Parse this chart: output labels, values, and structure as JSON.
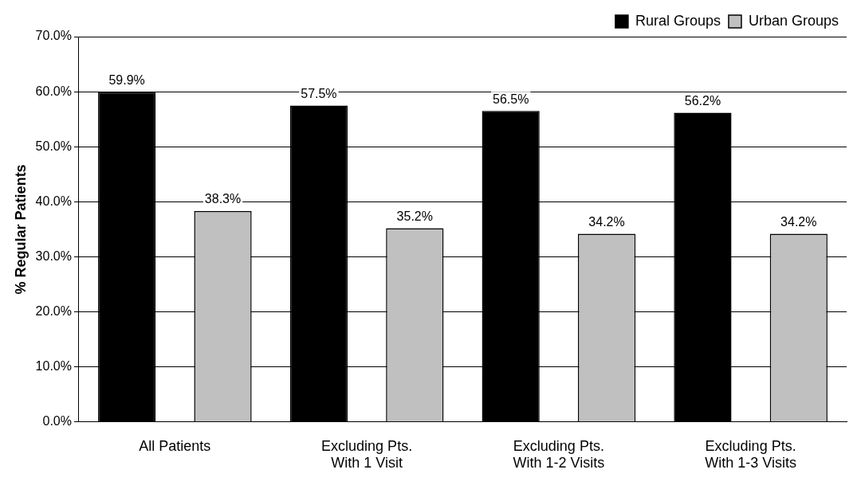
{
  "chart_data": {
    "type": "bar",
    "ylabel": "% Regular Patients",
    "categories": [
      "All Patients",
      "Excluding Pts.\nWith 1 Visit",
      "Excluding Pts.\nWith 1-2 Visits",
      "Excluding Pts.\nWith 1-3 Visits"
    ],
    "series": [
      {
        "name": "Rural Groups",
        "color": "#000000",
        "values": [
          59.9,
          57.5,
          56.5,
          56.2
        ],
        "value_labels": [
          "59.9%",
          "57.5%",
          "56.5%",
          "56.2%"
        ]
      },
      {
        "name": "Urban Groups",
        "color": "#c0c0c0",
        "values": [
          38.3,
          35.2,
          34.2,
          34.2
        ],
        "value_labels": [
          "38.3%",
          "35.2%",
          "34.2%",
          "34.2%"
        ]
      }
    ],
    "ylim": [
      0,
      70
    ],
    "yticks": [
      {
        "value": 0,
        "label": "0.0%"
      },
      {
        "value": 10,
        "label": "10.0%"
      },
      {
        "value": 20,
        "label": "20.0%"
      },
      {
        "value": 30,
        "label": "30.0%"
      },
      {
        "value": 40,
        "label": "40.0%"
      },
      {
        "value": 50,
        "label": "50.0%"
      },
      {
        "value": 60,
        "label": "60.0%"
      },
      {
        "value": 70,
        "label": "70.0%"
      }
    ],
    "grid": "y",
    "legend": "top right"
  }
}
